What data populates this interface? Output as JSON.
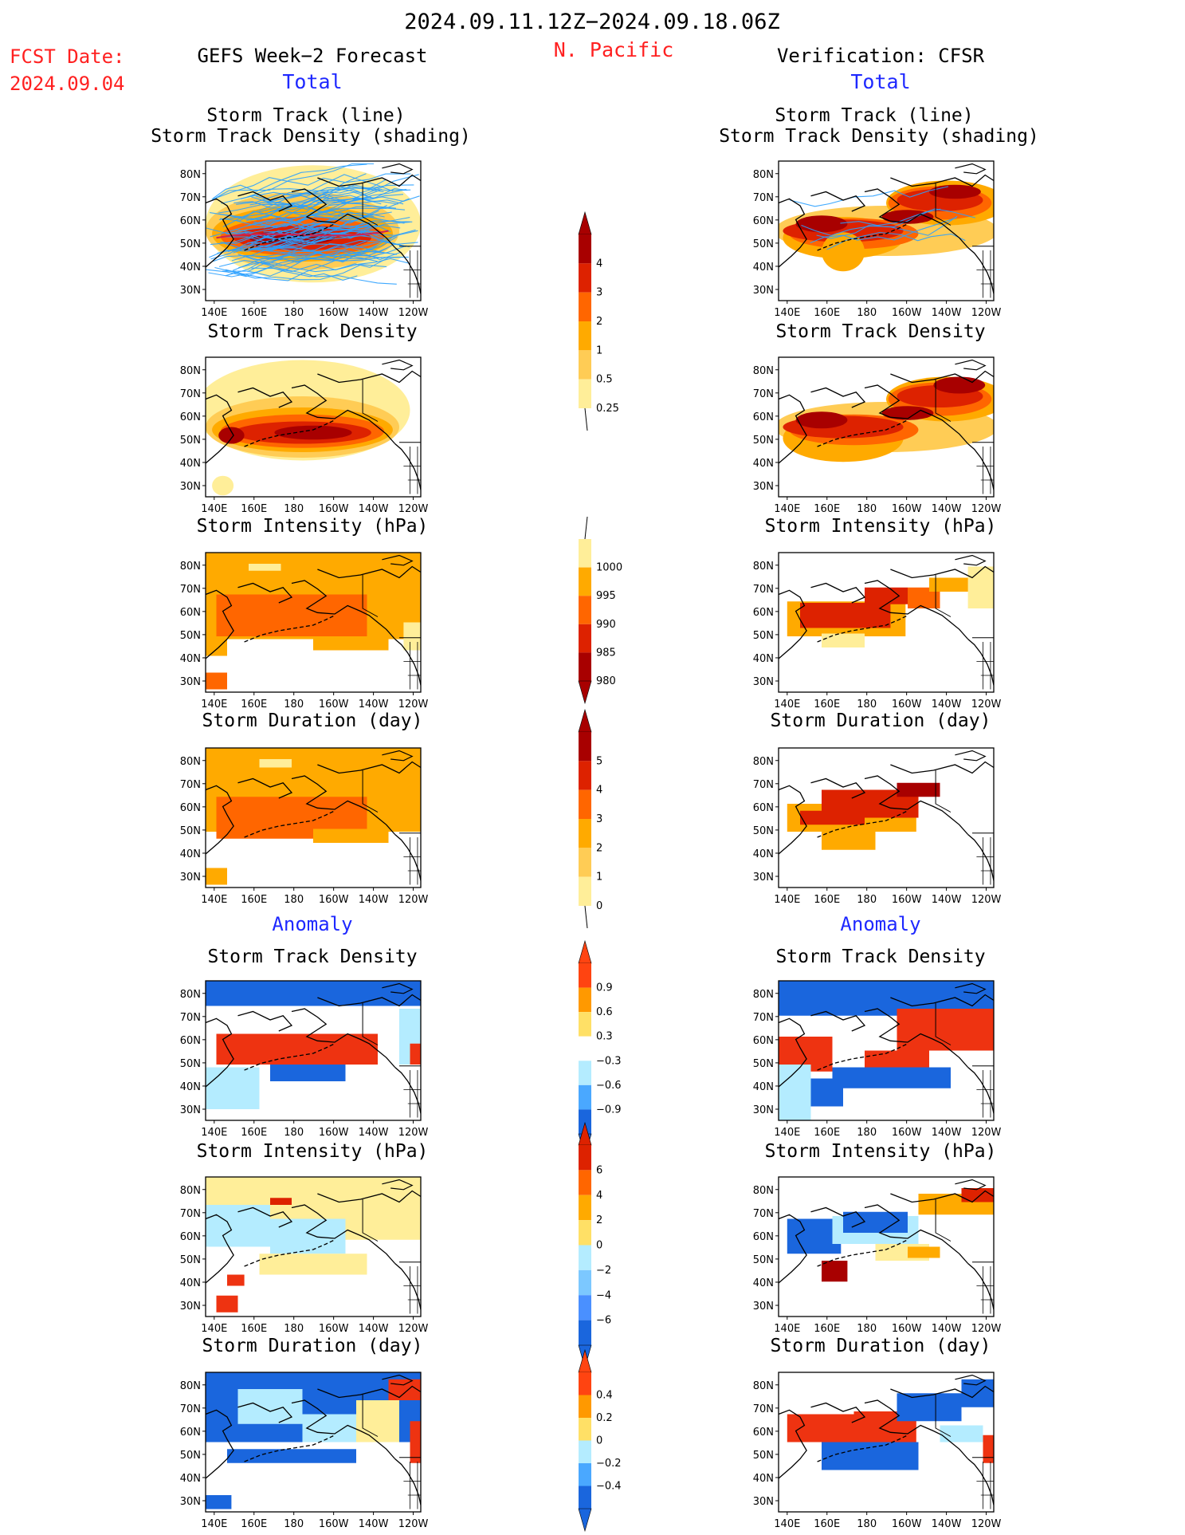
{
  "header": {
    "period": "2024.09.11.12Z−2024.09.18.06Z",
    "region": "N. Pacific",
    "fcst_label": "FCST Date:",
    "fcst_date": "2024.09.04",
    "left_title": "GEFS Week−2 Forecast",
    "right_title": "Verification: CFSR",
    "total_label": "Total",
    "anomaly_label": "Anomaly"
  },
  "panel_titles": {
    "track_line": "Storm Track (line)",
    "track_shading": "Storm Track Density (shading)",
    "density": "Storm Track Density",
    "intensity": "Storm Intensity (hPa)",
    "duration": "Storm Duration (day)"
  },
  "axes": {
    "lon_ticks": [
      "140E",
      "160E",
      "180",
      "160W",
      "140W",
      "120W"
    ],
    "lat_ticks": [
      "80N",
      "70N",
      "60N",
      "50N",
      "40N",
      "30N"
    ]
  },
  "colorbars": [
    {
      "id": "density",
      "labels": [
        "4",
        "3",
        "2",
        "1",
        "0.5",
        "0.25"
      ],
      "colors": [
        "#a80000",
        "#dd2200",
        "#ff6600",
        "#ffaa00",
        "#ffcc55",
        "#ffee99"
      ]
    },
    {
      "id": "intensity",
      "labels": [
        "1000",
        "995",
        "990",
        "985",
        "980"
      ],
      "colors": [
        "#ffee99",
        "#ffaa00",
        "#ff6600",
        "#dd2200",
        "#a80000"
      ]
    },
    {
      "id": "duration",
      "labels": [
        "5",
        "4",
        "3",
        "2",
        "1",
        "0"
      ],
      "colors": [
        "#a80000",
        "#dd2200",
        "#ff6600",
        "#ffaa00",
        "#ffcc55",
        "#ffee99"
      ]
    },
    {
      "id": "anom-density",
      "labels": [
        "0.9",
        "0.6",
        "0.3",
        "−0.3",
        "−0.6",
        "−0.9"
      ],
      "colors": [
        "#ff4411",
        "#ff9900",
        "#ffe066",
        "#ffffff",
        "#b4ecff",
        "#4aa8ff",
        "#1a66dd"
      ]
    },
    {
      "id": "anom-intensity",
      "labels": [
        "6",
        "4",
        "2",
        "0",
        "−2",
        "−4",
        "−6"
      ],
      "colors": [
        "#dd2200",
        "#ff6600",
        "#ffaa00",
        "#ffe066",
        "#b4ecff",
        "#7cc8ff",
        "#4a90ff",
        "#1a66dd"
      ]
    },
    {
      "id": "anom-duration",
      "labels": [
        "0.4",
        "0.2",
        "0",
        "−0.2",
        "−0.4"
      ],
      "colors": [
        "#ff4411",
        "#ff9900",
        "#ffe066",
        "#b4ecff",
        "#4aa8ff",
        "#1a66dd"
      ]
    }
  ],
  "palette": {
    "light_yellow": "#ffee99",
    "yellow": "#ffcc55",
    "orange": "#ffaa00",
    "dark_orange": "#ff6600",
    "red": "#dd2200",
    "dark_red": "#a80000",
    "pos_anom": "#ee3311",
    "neg_anom": "#1a66dd",
    "light_blue": "#b4ecff",
    "track_line": "#2aa0ff",
    "mean_track": "#cc2255"
  }
}
